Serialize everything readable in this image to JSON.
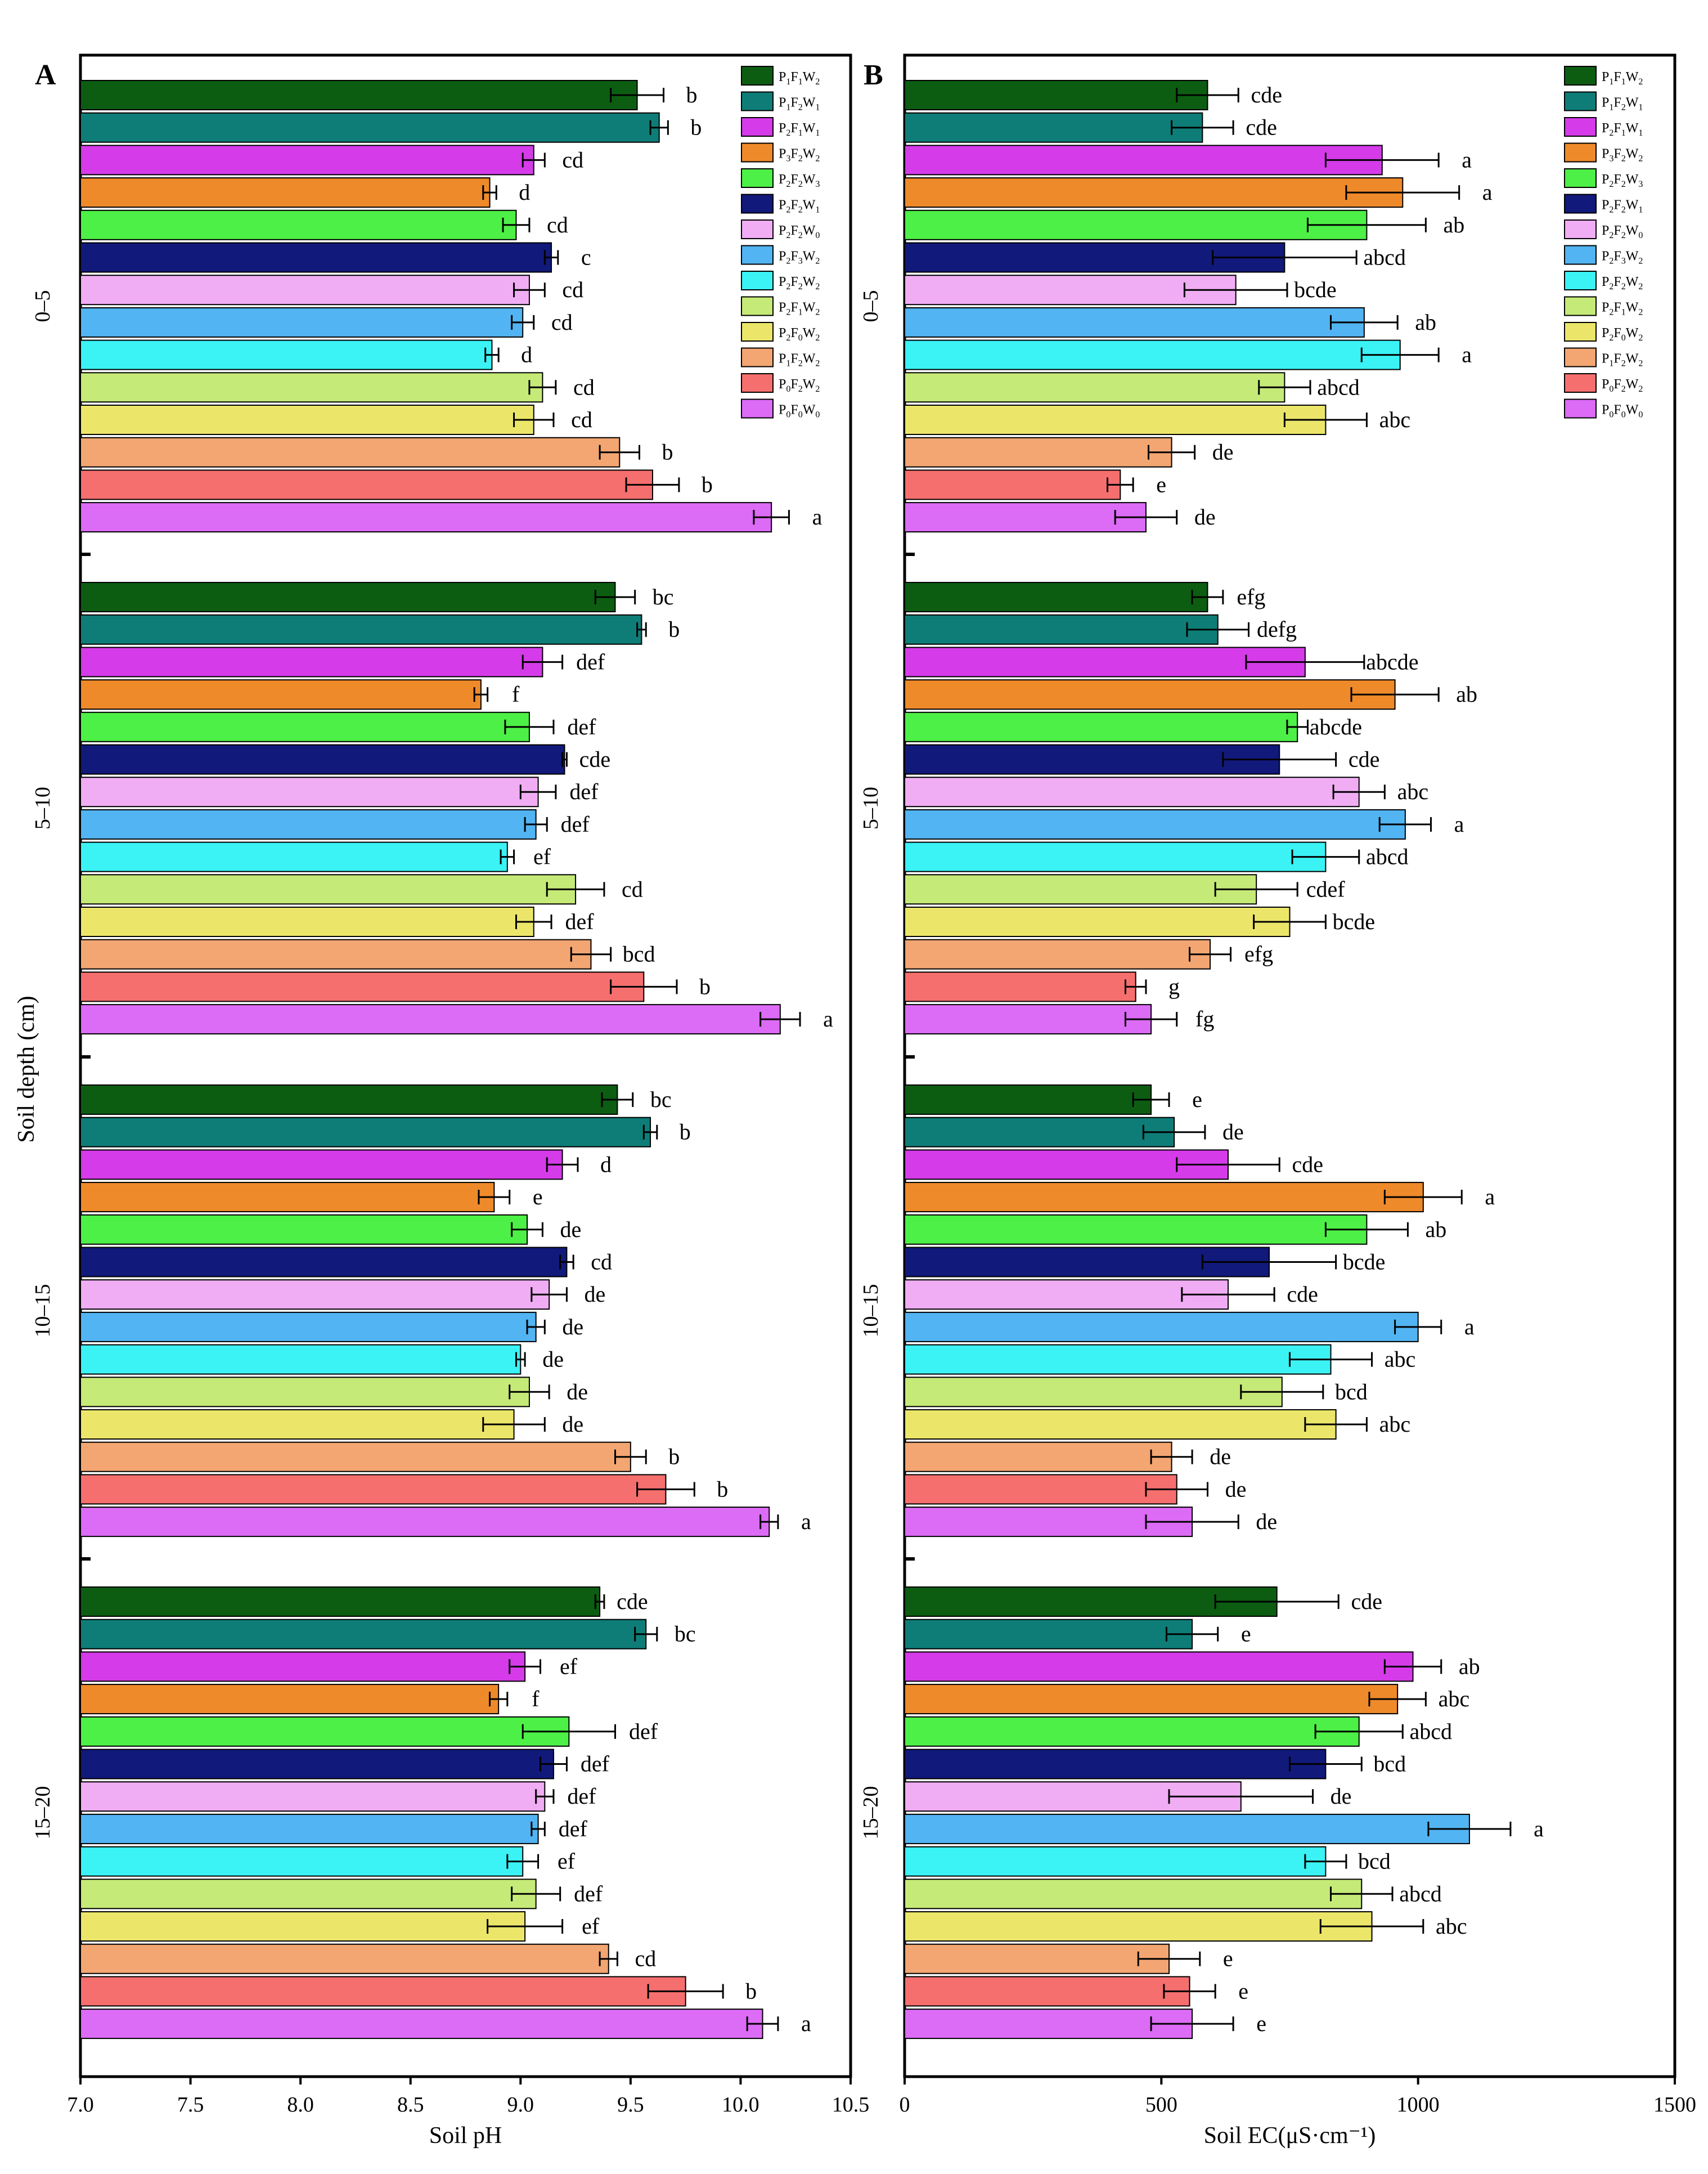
{
  "chart_data": [
    {
      "panel": "A",
      "type": "bar",
      "orientation": "horizontal",
      "xlabel": "Soil pH",
      "ylabel": "Soil depth (cm)",
      "xlim": [
        7.0,
        10.5
      ],
      "xticks": [
        "7.0",
        "7.5",
        "8.0",
        "8.5",
        "9.0",
        "9.5",
        "10.0",
        "10.5"
      ],
      "groups": [
        {
          "depth": "0–5",
          "values": [
            9.53,
            9.63,
            9.06,
            8.86,
            8.98,
            9.14,
            9.04,
            9.01,
            8.87,
            9.1,
            9.06,
            9.45,
            9.6,
            10.14
          ],
          "errors": [
            0.12,
            0.04,
            0.05,
            0.03,
            0.06,
            0.03,
            0.07,
            0.05,
            0.03,
            0.06,
            0.09,
            0.09,
            0.12,
            0.08
          ],
          "letters": [
            "b",
            "b",
            "cd",
            "d",
            "cd",
            "c",
            "cd",
            "cd",
            "d",
            "cd",
            "cd",
            "b",
            "b",
            "a"
          ]
        },
        {
          "depth": "5–10",
          "values": [
            9.43,
            9.55,
            9.1,
            8.82,
            9.04,
            9.2,
            9.08,
            9.07,
            8.94,
            9.25,
            9.06,
            9.32,
            9.56,
            10.18
          ],
          "errors": [
            0.09,
            0.02,
            0.09,
            0.03,
            0.11,
            0.01,
            0.08,
            0.05,
            0.03,
            0.13,
            0.08,
            0.09,
            0.15,
            0.09
          ],
          "letters": [
            "bc",
            "b",
            "def",
            "f",
            "def",
            "cde",
            "def",
            "def",
            "ef",
            "cd",
            "def",
            "bcd",
            "b",
            "a"
          ]
        },
        {
          "depth": "10–15",
          "values": [
            9.44,
            9.59,
            9.19,
            8.88,
            9.03,
            9.21,
            9.13,
            9.07,
            9.0,
            9.04,
            8.97,
            9.5,
            9.66,
            10.13
          ],
          "errors": [
            0.07,
            0.03,
            0.07,
            0.07,
            0.07,
            0.03,
            0.08,
            0.04,
            0.02,
            0.09,
            0.14,
            0.07,
            0.13,
            0.04
          ],
          "letters": [
            "bc",
            "b",
            "d",
            "e",
            "de",
            "cd",
            "de",
            "de",
            "de",
            "de",
            "de",
            "b",
            "b",
            "a"
          ]
        },
        {
          "depth": "15–20",
          "values": [
            9.36,
            9.57,
            9.02,
            8.9,
            9.22,
            9.15,
            9.11,
            9.08,
            9.01,
            9.07,
            9.02,
            9.4,
            9.75,
            10.1
          ],
          "errors": [
            0.02,
            0.05,
            0.07,
            0.04,
            0.21,
            0.06,
            0.04,
            0.03,
            0.07,
            0.11,
            0.17,
            0.04,
            0.17,
            0.07
          ],
          "letters": [
            "cde",
            "bc",
            "ef",
            "f",
            "def",
            "def",
            "def",
            "def",
            "ef",
            "def",
            "ef",
            "cd",
            "b",
            "a"
          ]
        }
      ]
    },
    {
      "panel": "B",
      "type": "bar",
      "orientation": "horizontal",
      "xlabel": "Soil EC(μS·cm⁻¹)",
      "xlim": [
        0,
        1500
      ],
      "xticks": [
        "0",
        "500",
        "1000",
        "1500"
      ],
      "groups": [
        {
          "depth": "0–5",
          "values": [
            590,
            580,
            930,
            970,
            900,
            740,
            645,
            895,
            965,
            740,
            820,
            520,
            420,
            470
          ],
          "errors": [
            60,
            60,
            110,
            110,
            115,
            140,
            100,
            65,
            75,
            50,
            80,
            45,
            25,
            60
          ],
          "letters": [
            "cde",
            "cde",
            "a",
            "a",
            "ab",
            "abcd",
            "bcde",
            "ab",
            "a",
            "abcd",
            "abc",
            "de",
            "e",
            "de"
          ]
        },
        {
          "depth": "5–10",
          "values": [
            590,
            610,
            780,
            955,
            765,
            730,
            885,
            975,
            820,
            685,
            750,
            595,
            450,
            480
          ],
          "errors": [
            30,
            60,
            115,
            85,
            20,
            110,
            50,
            50,
            65,
            80,
            70,
            40,
            20,
            50
          ],
          "letters": [
            "efg",
            "defg",
            "abcde",
            "ab",
            "abcde",
            "cde",
            "abc",
            "a",
            "abcd",
            "cdef",
            "bcde",
            "efg",
            "g",
            "fg"
          ]
        },
        {
          "depth": "10–15",
          "values": [
            480,
            525,
            630,
            1010,
            900,
            710,
            630,
            1000,
            830,
            735,
            840,
            520,
            530,
            560
          ],
          "errors": [
            35,
            60,
            100,
            75,
            80,
            130,
            90,
            45,
            80,
            80,
            60,
            40,
            60,
            90
          ],
          "letters": [
            "e",
            "de",
            "cde",
            "a",
            "ab",
            "bcde",
            "cde",
            "a",
            "abc",
            "bcd",
            "abc",
            "de",
            "de",
            "de"
          ]
        },
        {
          "depth": "15–20",
          "values": [
            725,
            560,
            990,
            960,
            885,
            820,
            655,
            1100,
            820,
            890,
            910,
            515,
            555,
            560
          ],
          "errors": [
            120,
            50,
            55,
            55,
            85,
            70,
            140,
            80,
            40,
            60,
            100,
            60,
            50,
            80
          ],
          "letters": [
            "cde",
            "e",
            "ab",
            "abc",
            "abcd",
            "bcd",
            "de",
            "a",
            "bcd",
            "abcd",
            "abc",
            "e",
            "e",
            "e"
          ]
        }
      ]
    }
  ],
  "legend": [
    {
      "base": "P",
      "s1": "1",
      "m": "F",
      "s2": "1",
      "t": "W",
      "s3": "2",
      "color": "#0c5d12"
    },
    {
      "base": "P",
      "s1": "1",
      "m": "F",
      "s2": "2",
      "t": "W",
      "s3": "1",
      "color": "#0f7d77"
    },
    {
      "base": "P",
      "s1": "2",
      "m": "F",
      "s2": "1",
      "t": "W",
      "s3": "1",
      "color": "#d53be9"
    },
    {
      "base": "P",
      "s1": "3",
      "m": "F",
      "s2": "2",
      "t": "W",
      "s3": "2",
      "color": "#ef8a2b"
    },
    {
      "base": "P",
      "s1": "2",
      "m": "F",
      "s2": "2",
      "t": "W",
      "s3": "3",
      "color": "#4df046"
    },
    {
      "base": "P",
      "s1": "2",
      "m": "F",
      "s2": "2",
      "t": "W",
      "s3": "1",
      "color": "#11197a"
    },
    {
      "base": "P",
      "s1": "2",
      "m": "F",
      "s2": "2",
      "t": "W",
      "s3": "0",
      "color": "#f0adf4"
    },
    {
      "base": "P",
      "s1": "2",
      "m": "F",
      "s2": "3",
      "t": "W",
      "s3": "2",
      "color": "#52b4f2"
    },
    {
      "base": "P",
      "s1": "2",
      "m": "F",
      "s2": "2",
      "t": "W",
      "s3": "2",
      "color": "#3bf2f4"
    },
    {
      "base": "P",
      "s1": "2",
      "m": "F",
      "s2": "1",
      "t": "W",
      "s3": "2",
      "color": "#c5ea78"
    },
    {
      "base": "P",
      "s1": "2",
      "m": "F",
      "s2": "0",
      "t": "W",
      "s3": "2",
      "color": "#ebe66a"
    },
    {
      "base": "P",
      "s1": "1",
      "m": "F",
      "s2": "2",
      "t": "W",
      "s3": "2",
      "color": "#f3a672"
    },
    {
      "base": "P",
      "s1": "0",
      "m": "F",
      "s2": "2",
      "t": "W",
      "s3": "2",
      "color": "#f56f6e"
    },
    {
      "base": "P",
      "s1": "0",
      "m": "F",
      "s2": "0",
      "t": "W",
      "s3": "0",
      "color": "#dc6bf5"
    }
  ]
}
